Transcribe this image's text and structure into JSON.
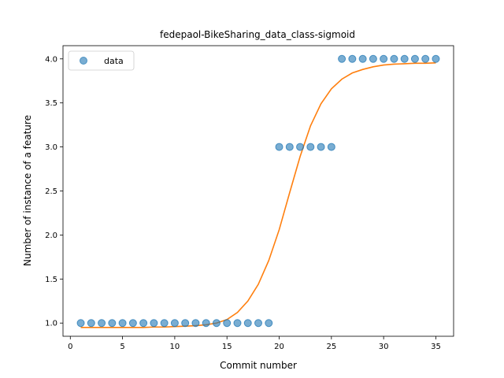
{
  "chart_data": {
    "type": "scatter",
    "title": "fedepaol-BikeSharing_data_class-sigmoid",
    "xlabel": "Commit number",
    "ylabel": "Number of instance of a feature",
    "xlim": [
      -0.7,
      36.7
    ],
    "ylim": [
      0.85,
      4.15
    ],
    "xticks": [
      0,
      5,
      10,
      15,
      20,
      25,
      30,
      35
    ],
    "yticks": [
      1.0,
      1.5,
      2.0,
      2.5,
      3.0,
      3.5,
      4.0
    ],
    "xtick_labels": [
      "0",
      "5",
      "10",
      "15",
      "20",
      "25",
      "30",
      "35"
    ],
    "ytick_labels": [
      "1.0",
      "1.5",
      "2.0",
      "2.5",
      "3.0",
      "3.5",
      "4.0"
    ],
    "legend": {
      "position": "top-left",
      "entries": [
        "data"
      ]
    },
    "grid": false,
    "series": [
      {
        "name": "data",
        "kind": "scatter",
        "color": "#1f77b4",
        "x": [
          1,
          2,
          3,
          4,
          5,
          6,
          7,
          8,
          9,
          10,
          11,
          12,
          13,
          14,
          15,
          16,
          17,
          18,
          19,
          20,
          21,
          22,
          23,
          24,
          25,
          26,
          27,
          28,
          29,
          30,
          31,
          32,
          33,
          34,
          35
        ],
        "y": [
          1,
          1,
          1,
          1,
          1,
          1,
          1,
          1,
          1,
          1,
          1,
          1,
          1,
          1,
          1,
          1,
          1,
          1,
          1,
          3,
          3,
          3,
          3,
          3,
          3,
          4,
          4,
          4,
          4,
          4,
          4,
          4,
          4,
          4,
          4
        ]
      },
      {
        "kind": "line",
        "color": "#ff7f0e",
        "x": [
          1,
          2,
          3,
          4,
          5,
          6,
          7,
          8,
          9,
          10,
          11,
          12,
          13,
          14,
          15,
          16,
          17,
          18,
          19,
          20,
          21,
          22,
          23,
          24,
          25,
          26,
          27,
          28,
          29,
          30,
          31,
          32,
          33,
          34,
          35
        ],
        "y": [
          0.95,
          0.95,
          0.95,
          0.95,
          0.95,
          0.95,
          0.95,
          0.955,
          0.955,
          0.96,
          0.965,
          0.97,
          0.98,
          1.0,
          1.04,
          1.12,
          1.25,
          1.44,
          1.71,
          2.06,
          2.48,
          2.89,
          3.24,
          3.49,
          3.66,
          3.77,
          3.84,
          3.88,
          3.91,
          3.93,
          3.94,
          3.945,
          3.95,
          3.95,
          3.955
        ]
      }
    ]
  }
}
